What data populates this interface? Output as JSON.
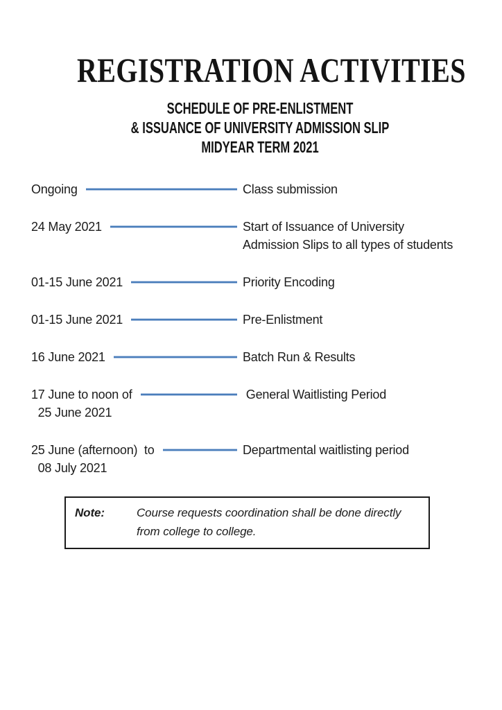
{
  "header": {
    "title": "REGISTRATION ACTIVITIES",
    "subtitle_lines": [
      "SCHEDULE OF PRE-ENLISTMENT",
      "& ISSUANCE OF UNIVERSITY ADMISSION SLIP",
      "MIDYEAR TERM 2021"
    ]
  },
  "schedule": {
    "rows": [
      {
        "date": "Ongoing",
        "activity": "Class submission"
      },
      {
        "date": "24 May 2021",
        "activity": "Start of Issuance of University\nAdmission Slips to all types of students"
      },
      {
        "date": "01-15 June 2021",
        "activity": "Priority Encoding"
      },
      {
        "date": "01-15 June 2021",
        "activity": "Pre-Enlistment"
      },
      {
        "date": "16 June 2021",
        "activity": "Batch Run & Results"
      },
      {
        "date": "17 June to noon of\n  25 June 2021",
        "activity": " General Waitlisting Period"
      },
      {
        "date": "25 June (afternoon)  to\n  08 July 2021",
        "activity": "Departmental waitlisting period"
      }
    ]
  },
  "note": {
    "label": "Note:",
    "text": "Course requests coordination shall be done directly\nfrom college to college."
  },
  "colors": {
    "connector_blue": "#4a7ebb",
    "connector_edge": "#b3c8e4",
    "text": "#1c1c1c",
    "note_border": "#1b1b1b",
    "background": "#ffffff"
  }
}
